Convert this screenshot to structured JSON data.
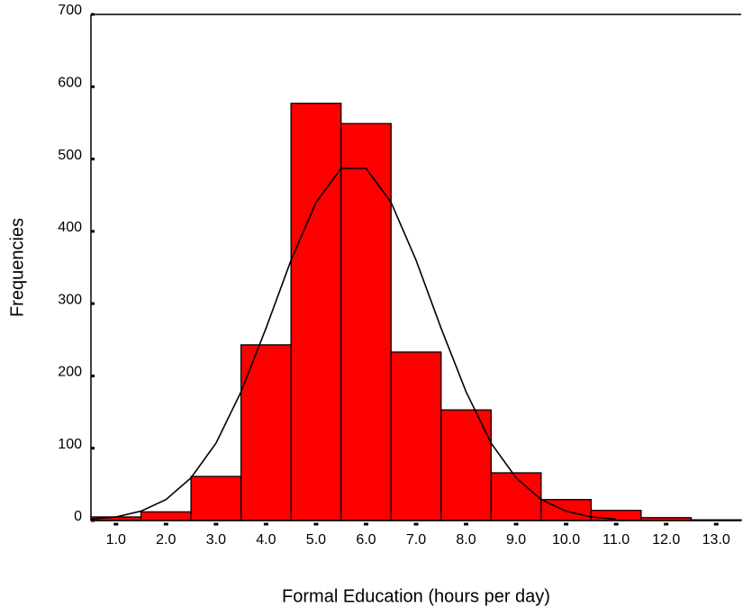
{
  "chart_data": {
    "type": "histogram",
    "xlabel": "Formal Education (hours per day)",
    "ylabel": "Frequencies",
    "bins": [
      0.5,
      1.5,
      2.5,
      3.5,
      4.5,
      5.5,
      6.5,
      7.5,
      8.5,
      9.5,
      10.5,
      11.5,
      12.5,
      13.5
    ],
    "values": [
      5,
      12,
      61,
      243,
      577,
      549,
      233,
      153,
      66,
      29,
      14,
      4,
      1
    ],
    "color": "#ff0000",
    "curve": {
      "x": [
        0.5,
        1.0,
        1.5,
        2.0,
        2.5,
        3.0,
        3.5,
        4.0,
        4.5,
        5.0,
        5.5,
        6.0,
        6.5,
        7.0,
        7.5,
        8.0,
        8.5,
        9.0,
        9.5,
        10.0,
        10.5,
        11.0
      ],
      "values": [
        2,
        5,
        13,
        29,
        59,
        107,
        178,
        266,
        360,
        440,
        487,
        487,
        440,
        360,
        266,
        178,
        107,
        59,
        29,
        13,
        5,
        2
      ],
      "color": "#000000"
    },
    "xlim": [
      0.5,
      13.5
    ],
    "xticks": [
      {
        "value": 1,
        "label": "1.0"
      },
      {
        "value": 2,
        "label": "2.0"
      },
      {
        "value": 3,
        "label": "3.0"
      },
      {
        "value": 4,
        "label": "4.0"
      },
      {
        "value": 5,
        "label": "5.0"
      },
      {
        "value": 6,
        "label": "6.0"
      },
      {
        "value": 7,
        "label": "7.0"
      },
      {
        "value": 8,
        "label": "8.0"
      },
      {
        "value": 9,
        "label": "9.0"
      },
      {
        "value": 10,
        "label": "10.0"
      },
      {
        "value": 11,
        "label": "11.0"
      },
      {
        "value": 12,
        "label": "12.0"
      },
      {
        "value": 13,
        "label": "13.0"
      }
    ],
    "ylim": [
      0,
      700
    ],
    "yticks": [
      0,
      100,
      200,
      300,
      400,
      500,
      600,
      700
    ]
  }
}
